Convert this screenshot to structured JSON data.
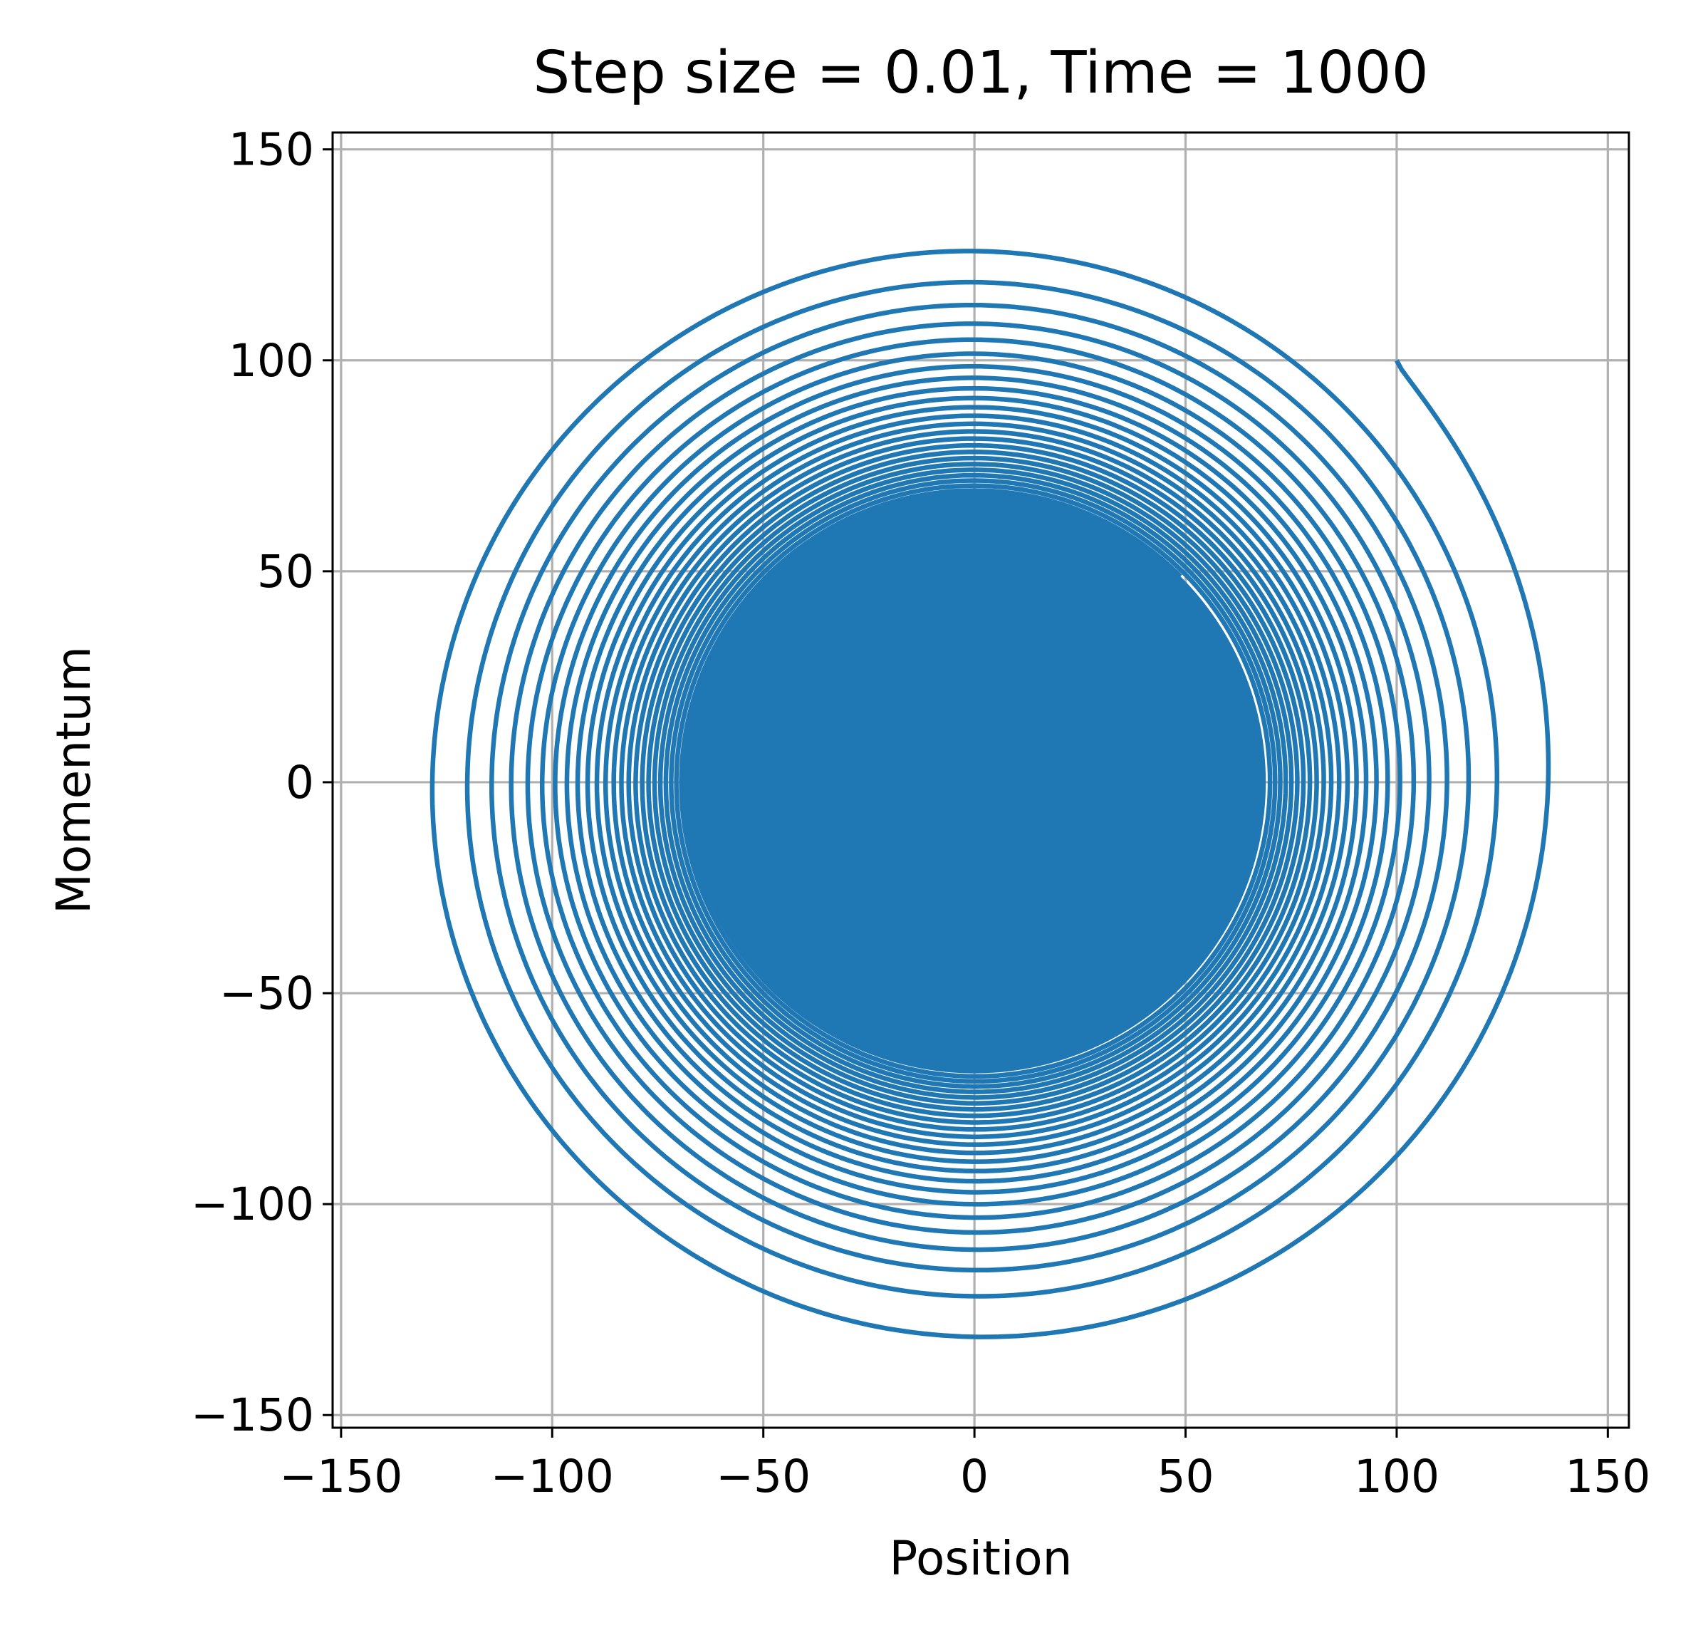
{
  "chart_data": {
    "type": "line",
    "title": "Step size = 0.01, Time = 1000",
    "xlabel": "Position",
    "ylabel": "Momentum",
    "xlim": [
      -152,
      155
    ],
    "ylim": [
      -153,
      154
    ],
    "xticks": [
      -150,
      -100,
      -50,
      0,
      50,
      100,
      150
    ],
    "yticks": [
      -150,
      -100,
      -50,
      0,
      50,
      100,
      150
    ],
    "xtick_labels": [
      "−150",
      "−100",
      "−50",
      "0",
      "50",
      "100",
      "150"
    ],
    "ytick_labels": [
      "−150",
      "−100",
      "−50",
      "0",
      "50",
      "100",
      "150"
    ],
    "grid": true,
    "legend": "none",
    "series": [
      {
        "color": "#1f77b4",
        "description_values": {
          "start": {
            "x": 100,
            "y": 100
          },
          "start_radius": 141.4,
          "end_radius": 69,
          "points_clockwise": true,
          "step_size": 0.01,
          "time": 1000
        }
      }
    ],
    "grid_color": "#b0b0b0"
  }
}
